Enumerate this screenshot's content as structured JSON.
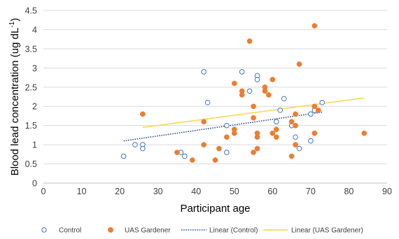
{
  "chart_data": {
    "type": "scatter",
    "xlabel": "Participant age",
    "ylabel_main": "Blood lead concentration (ug dL",
    "ylabel_sup": "-1",
    "ylabel_close": ")",
    "xlim": [
      0,
      90
    ],
    "ylim": [
      0,
      4.5
    ],
    "x_ticks": [
      "0",
      "10",
      "20",
      "30",
      "40",
      "50",
      "60",
      "70",
      "80",
      "90"
    ],
    "y_ticks": [
      "0",
      "0.5",
      "1",
      "1.5",
      "2",
      "2.5",
      "3",
      "3.5",
      "4",
      "4.5"
    ],
    "grid": "horizontal",
    "legend_position": "bottom",
    "series": [
      {
        "name": "Control",
        "marker": "open-circle",
        "color": "#4472C4",
        "points": [
          {
            "x": 21,
            "y": 0.7
          },
          {
            "x": 24,
            "y": 1.0
          },
          {
            "x": 26,
            "y": 1.0
          },
          {
            "x": 26,
            "y": 0.9
          },
          {
            "x": 36,
            "y": 0.8
          },
          {
            "x": 37,
            "y": 0.7
          },
          {
            "x": 42,
            "y": 2.9
          },
          {
            "x": 43,
            "y": 2.1
          },
          {
            "x": 48,
            "y": 1.5
          },
          {
            "x": 48,
            "y": 0.8
          },
          {
            "x": 52,
            "y": 2.9
          },
          {
            "x": 54,
            "y": 2.4
          },
          {
            "x": 56,
            "y": 2.8
          },
          {
            "x": 56,
            "y": 2.7
          },
          {
            "x": 61,
            "y": 1.6
          },
          {
            "x": 62,
            "y": 1.9
          },
          {
            "x": 63,
            "y": 2.2
          },
          {
            "x": 65,
            "y": 1.5
          },
          {
            "x": 66,
            "y": 1.2
          },
          {
            "x": 67,
            "y": 0.9
          },
          {
            "x": 70,
            "y": 1.8
          },
          {
            "x": 70,
            "y": 1.1
          },
          {
            "x": 71,
            "y": 1.9
          },
          {
            "x": 73,
            "y": 2.1
          }
        ]
      },
      {
        "name": "UAS Gardener",
        "marker": "filled-circle",
        "color": "#ED7D31",
        "points": [
          {
            "x": 26,
            "y": 1.8
          },
          {
            "x": 35,
            "y": 0.8
          },
          {
            "x": 39,
            "y": 0.6
          },
          {
            "x": 42,
            "y": 1.6
          },
          {
            "x": 42,
            "y": 1.0
          },
          {
            "x": 45,
            "y": 0.6
          },
          {
            "x": 46,
            "y": 0.9
          },
          {
            "x": 48,
            "y": 1.2
          },
          {
            "x": 50,
            "y": 2.6
          },
          {
            "x": 50,
            "y": 1.4
          },
          {
            "x": 50,
            "y": 1.3
          },
          {
            "x": 52,
            "y": 2.4
          },
          {
            "x": 52,
            "y": 2.3
          },
          {
            "x": 54,
            "y": 3.7
          },
          {
            "x": 55,
            "y": 2.0
          },
          {
            "x": 55,
            "y": 1.7
          },
          {
            "x": 55,
            "y": 0.8
          },
          {
            "x": 56,
            "y": 1.3
          },
          {
            "x": 56,
            "y": 1.2
          },
          {
            "x": 56,
            "y": 0.9
          },
          {
            "x": 58,
            "y": 2.5
          },
          {
            "x": 58,
            "y": 2.4
          },
          {
            "x": 59,
            "y": 2.3
          },
          {
            "x": 60,
            "y": 2.7
          },
          {
            "x": 60,
            "y": 1.3
          },
          {
            "x": 61,
            "y": 1.4
          },
          {
            "x": 61,
            "y": 1.2
          },
          {
            "x": 65,
            "y": 1.6
          },
          {
            "x": 65,
            "y": 0.7
          },
          {
            "x": 66,
            "y": 1.8
          },
          {
            "x": 66,
            "y": 1.5
          },
          {
            "x": 66,
            "y": 1.0
          },
          {
            "x": 67,
            "y": 3.1
          },
          {
            "x": 71,
            "y": 4.1
          },
          {
            "x": 71,
            "y": 2.0
          },
          {
            "x": 71,
            "y": 1.3
          },
          {
            "x": 72,
            "y": 1.9
          },
          {
            "x": 84,
            "y": 1.3
          }
        ]
      }
    ],
    "trendlines": [
      {
        "name": "Linear (Control)",
        "style": "dotted",
        "color": "#2F5597",
        "x": [
          21,
          73
        ],
        "y": [
          1.1,
          1.85
        ]
      },
      {
        "name": "Linear (UAS Gardener)",
        "style": "solid",
        "color": "#FFD966",
        "x": [
          26,
          84
        ],
        "y": [
          1.45,
          2.22
        ]
      }
    ]
  }
}
